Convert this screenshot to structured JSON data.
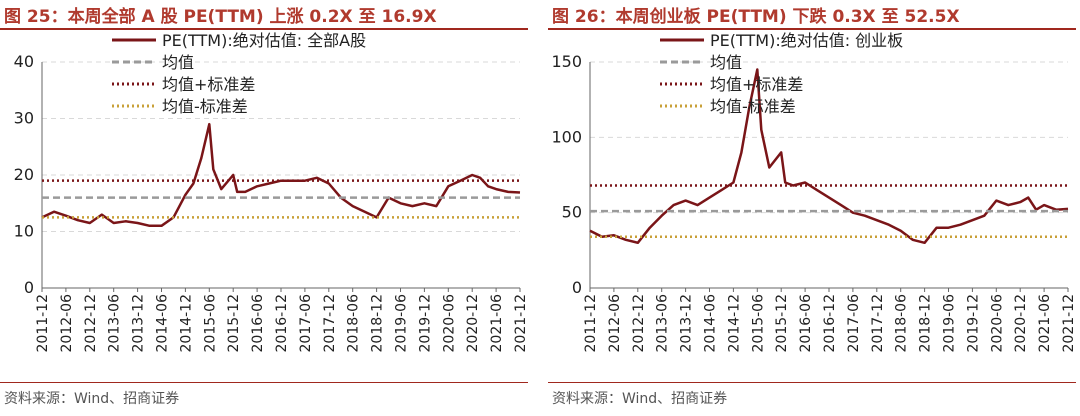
{
  "colors": {
    "title": "#b03a2e",
    "rule": "#a0281e",
    "pe_line": "#7a1518",
    "mean_line": "#9a9a9a",
    "plus_sd": "#7a1518",
    "minus_sd": "#c8a038",
    "gridline": "#d9d9d9",
    "axis_text": "#222222",
    "source_text": "#555555"
  },
  "chart_data": [
    {
      "type": "line",
      "figure_title": "图 25：本周全部 A 股 PE(TTM) 上涨 0.2X 至 16.9X",
      "source": "资料来源：Wind、招商证券",
      "ylim": [
        0,
        40
      ],
      "y_ticks": [
        "0",
        "10",
        "20",
        "30",
        "40"
      ],
      "grid": true,
      "legend_position": "top",
      "x_ticks": [
        "2011-12",
        "2012-06",
        "2012-12",
        "2013-06",
        "2013-12",
        "2014-06",
        "2014-12",
        "2015-06",
        "2015-12",
        "2016-06",
        "2016-12",
        "2017-06",
        "2017-12",
        "2018-06",
        "2018-12",
        "2019-06",
        "2019-12",
        "2020-06",
        "2020-12",
        "2021-06",
        "2021-12"
      ],
      "series": [
        {
          "name": "PE(TTM):绝对估值: 全部A股",
          "style": "solid",
          "x": [
            "2011-12",
            "2012-03",
            "2012-06",
            "2012-09",
            "2012-12",
            "2013-03",
            "2013-06",
            "2013-09",
            "2013-12",
            "2014-03",
            "2014-06",
            "2014-09",
            "2014-12",
            "2015-02",
            "2015-04",
            "2015-06",
            "2015-07",
            "2015-09",
            "2015-12",
            "2016-01",
            "2016-03",
            "2016-06",
            "2016-09",
            "2016-12",
            "2017-03",
            "2017-06",
            "2017-09",
            "2017-12",
            "2018-03",
            "2018-06",
            "2018-09",
            "2018-12",
            "2019-03",
            "2019-06",
            "2019-09",
            "2019-12",
            "2020-03",
            "2020-06",
            "2020-09",
            "2020-12",
            "2021-02",
            "2021-04",
            "2021-06",
            "2021-09",
            "2021-12"
          ],
          "values": [
            12.5,
            13.5,
            12.8,
            12.0,
            11.5,
            13.0,
            11.5,
            11.8,
            11.5,
            11.0,
            11.0,
            12.5,
            16.5,
            18.5,
            23.0,
            29.0,
            21.0,
            17.5,
            20.0,
            17.0,
            17.0,
            18.0,
            18.5,
            19.0,
            19.0,
            19.0,
            19.5,
            18.5,
            16.0,
            14.5,
            13.5,
            12.5,
            16.0,
            15.0,
            14.5,
            15.0,
            14.5,
            18.0,
            19.0,
            20.0,
            19.5,
            18.0,
            17.5,
            17.0,
            16.9
          ]
        },
        {
          "name": "均值",
          "style": "dashed",
          "constant": 16.0
        },
        {
          "name": "均值+标准差",
          "style": "dotted",
          "constant": 19.0
        },
        {
          "name": "均值-标准差",
          "style": "dotted",
          "constant": 12.5
        }
      ]
    },
    {
      "type": "line",
      "figure_title": "图 26：本周创业板 PE(TTM) 下跌 0.3X 至 52.5X",
      "source": "资料来源：Wind、招商证券",
      "ylim": [
        0,
        150
      ],
      "y_ticks": [
        "0",
        "50",
        "100",
        "150"
      ],
      "grid": true,
      "legend_position": "top",
      "x_ticks": [
        "2011-12",
        "2012-06",
        "2012-12",
        "2013-06",
        "2013-12",
        "2014-06",
        "2014-12",
        "2015-06",
        "2015-12",
        "2016-06",
        "2016-12",
        "2017-06",
        "2017-12",
        "2018-06",
        "2018-12",
        "2019-06",
        "2019-12",
        "2020-06",
        "2020-12",
        "2021-06",
        "2021-12"
      ],
      "series": [
        {
          "name": "PE(TTM):绝对估值: 创业板",
          "style": "solid",
          "x": [
            "2011-12",
            "2012-03",
            "2012-06",
            "2012-09",
            "2012-12",
            "2013-03",
            "2013-06",
            "2013-09",
            "2013-12",
            "2014-03",
            "2014-06",
            "2014-09",
            "2014-12",
            "2015-02",
            "2015-04",
            "2015-06",
            "2015-07",
            "2015-09",
            "2015-12",
            "2016-01",
            "2016-03",
            "2016-06",
            "2016-09",
            "2016-12",
            "2017-03",
            "2017-06",
            "2017-09",
            "2017-12",
            "2018-03",
            "2018-06",
            "2018-09",
            "2018-12",
            "2019-03",
            "2019-06",
            "2019-09",
            "2019-12",
            "2020-03",
            "2020-06",
            "2020-09",
            "2020-12",
            "2021-02",
            "2021-04",
            "2021-06",
            "2021-09",
            "2021-12"
          ],
          "values": [
            38,
            34,
            35,
            32,
            30,
            40,
            48,
            55,
            58,
            55,
            60,
            65,
            70,
            90,
            120,
            145,
            105,
            80,
            90,
            70,
            68,
            70,
            65,
            60,
            55,
            50,
            48,
            45,
            42,
            38,
            32,
            30,
            40,
            40,
            42,
            45,
            48,
            58,
            55,
            57,
            60,
            52,
            55,
            52,
            52.5
          ]
        },
        {
          "name": "均值",
          "style": "dashed",
          "constant": 51
        },
        {
          "name": "均值+标准差",
          "style": "dotted",
          "constant": 68
        },
        {
          "name": "均值-标准差",
          "style": "dotted",
          "constant": 34
        }
      ]
    }
  ]
}
